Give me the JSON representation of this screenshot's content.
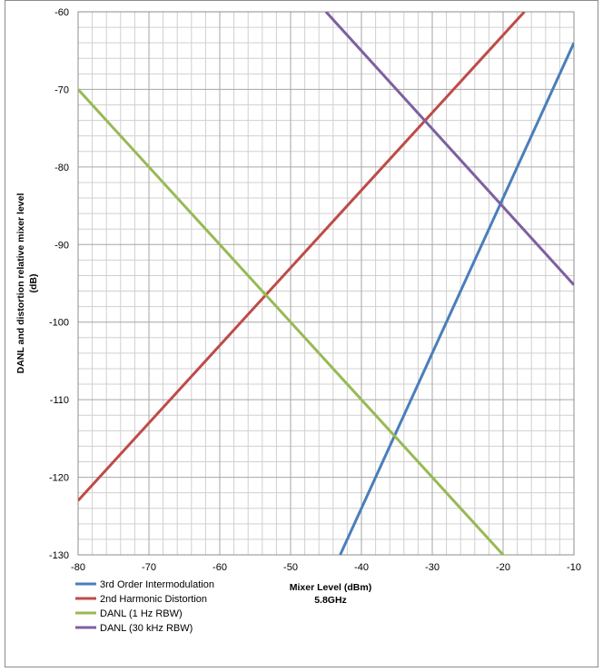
{
  "chart_data": {
    "type": "line",
    "xlabel": "Mixer Level (dBm)",
    "xlabel_sub": "5.8GHz",
    "ylabel": "DANL and distortion relative mixer level",
    "ylabel_sub": "(dB)",
    "xlim": [
      -80,
      -10
    ],
    "ylim": [
      -130,
      -60
    ],
    "x_ticks": [
      -80,
      -70,
      -60,
      -50,
      -40,
      -30,
      -20,
      -10
    ],
    "y_ticks": [
      -60,
      -70,
      -80,
      -90,
      -100,
      -110,
      -120,
      -130
    ],
    "minor_grid_step": 2,
    "grid": true,
    "legend_position": "bottom-left",
    "series": [
      {
        "name": "3rd Order Intermodulation",
        "color": "#4a7ebb",
        "points": [
          [
            -43,
            -130
          ],
          [
            -10,
            -64
          ]
        ]
      },
      {
        "name": "2nd Harmonic Distortion",
        "color": "#be4b48",
        "points": [
          [
            -80,
            -123
          ],
          [
            -17,
            -60
          ]
        ]
      },
      {
        "name": "DANL (1 Hz RBW)",
        "color": "#98b954",
        "points": [
          [
            -80,
            -70
          ],
          [
            -20,
            -130
          ]
        ]
      },
      {
        "name": "DANL (30 kHz RBW)",
        "color": "#7d60a0",
        "points": [
          [
            -45,
            -60
          ],
          [
            -10,
            -95.2
          ]
        ]
      }
    ]
  }
}
